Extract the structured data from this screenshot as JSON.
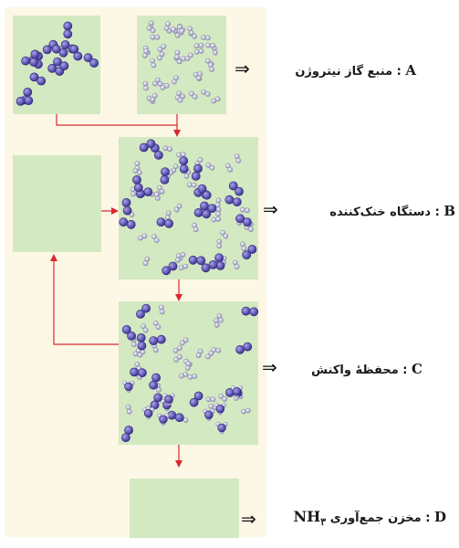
{
  "labels": {
    "A": {
      "letter": "A",
      "text": ": منبع گاز نیتروژن"
    },
    "B": {
      "letter": "B",
      "text": ": دستگاه خنک‌کننده"
    },
    "C": {
      "letter": "C",
      "text": ": محفظهٔ واکنش"
    },
    "D": {
      "letter": "D",
      "text": ": مخزن جمع‌آوری",
      "formula": "NH",
      "subscript": "۳"
    }
  },
  "arrow_symbol": "⇒",
  "colors": {
    "panel_background": "#fdf7e6",
    "box_fill": "#d3e9c2",
    "flow_arrow": "#d9282f",
    "n2_molecule": "#5a4fb0",
    "h2_molecule": "#a8a8c8"
  }
}
